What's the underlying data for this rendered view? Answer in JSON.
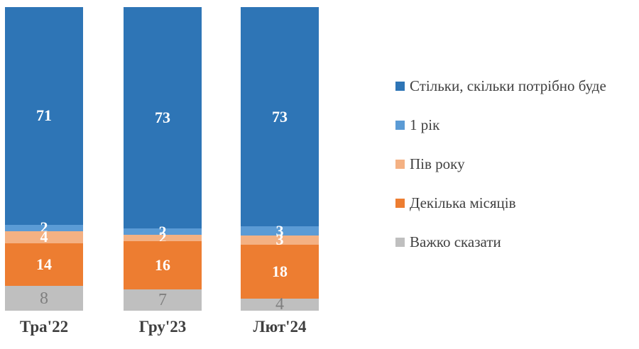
{
  "chart_data": {
    "type": "bar",
    "stacked": true,
    "normalized": true,
    "grid": false,
    "axes_visible": false,
    "legend_position": "right",
    "title": "",
    "xlabel": "",
    "ylabel": "",
    "categories": [
      "Тра'22",
      "Гру'23",
      "Лют'24"
    ],
    "series": [
      {
        "name": "Стільки, скільки потрібно буде",
        "color": "#2E75B6",
        "label_color": "#FFFFFF",
        "label_style": "bold",
        "values": [
          71,
          73,
          73
        ]
      },
      {
        "name": "1 рік",
        "color": "#5B9BD5",
        "label_color": "#FFFFFF",
        "label_style": "bold",
        "values": [
          2,
          2,
          3
        ]
      },
      {
        "name": "Пів року",
        "color": "#F4B183",
        "label_color": "#FFFFFF",
        "label_style": "bold",
        "values": [
          4,
          2,
          3
        ]
      },
      {
        "name": "Декілька місяців",
        "color": "#ED7D31",
        "label_color": "#FFFFFF",
        "label_style": "bold",
        "values": [
          14,
          16,
          18
        ]
      },
      {
        "name": "Важко сказати",
        "color": "#BFBFBF",
        "label_color": "#7F7F7F",
        "label_style": "normal",
        "values": [
          8,
          7,
          4
        ]
      }
    ],
    "category_label_color": "#3F3F3F",
    "legend_text_color": "#404040",
    "background_color": "#FFFFFF"
  }
}
